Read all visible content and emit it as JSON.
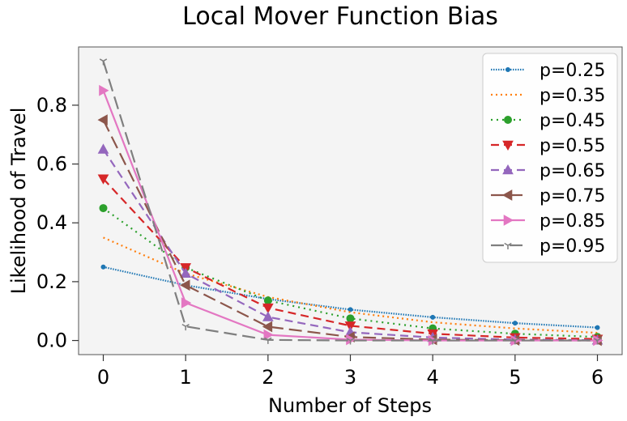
{
  "chart_data": {
    "type": "line",
    "title": "Local Mover Function Bias",
    "xlabel": "Number of Steps",
    "ylabel": "Likelihood of Travel",
    "x": [
      0,
      1,
      2,
      3,
      4,
      5,
      6
    ],
    "xlim": [
      -0.3,
      6.3
    ],
    "ylim": [
      -0.048,
      0.998
    ],
    "xticks": [
      "0",
      "1",
      "2",
      "3",
      "4",
      "5",
      "6"
    ],
    "yticks": [
      "0.0",
      "0.2",
      "0.4",
      "0.6",
      "0.8"
    ],
    "grid": false,
    "legend_position": "upper-right",
    "background": "#f4f4f4",
    "series": [
      {
        "name": "p=0.25",
        "color": "#1f77b4",
        "dash": "dotted-fine",
        "marker": "point",
        "values": [
          0.25,
          0.188,
          0.141,
          0.105,
          0.079,
          0.059,
          0.044
        ]
      },
      {
        "name": "p=0.35",
        "color": "#ff7f0e",
        "dash": "dotted",
        "marker": "none",
        "values": [
          0.35,
          0.228,
          0.148,
          0.096,
          0.062,
          0.041,
          0.026
        ]
      },
      {
        "name": "p=0.45",
        "color": "#2ca02c",
        "dash": "dash-dot",
        "marker": "circle",
        "values": [
          0.45,
          0.248,
          0.136,
          0.075,
          0.041,
          0.023,
          0.012
        ]
      },
      {
        "name": "p=0.55",
        "color": "#d62728",
        "dash": "dashed",
        "marker": "triangle-down",
        "values": [
          0.55,
          0.248,
          0.111,
          0.05,
          0.023,
          0.01,
          0.005
        ]
      },
      {
        "name": "p=0.65",
        "color": "#9467bd",
        "dash": "dashed",
        "marker": "triangle-up",
        "values": [
          0.65,
          0.228,
          0.08,
          0.028,
          0.01,
          0.003,
          0.001
        ]
      },
      {
        "name": "p=0.75",
        "color": "#8c564b",
        "dash": "long-dash",
        "marker": "triangle-left",
        "values": [
          0.75,
          0.188,
          0.047,
          0.012,
          0.003,
          0.001,
          0.0
        ]
      },
      {
        "name": "p=0.85",
        "color": "#e377c2",
        "dash": "solid",
        "marker": "triangle-right",
        "values": [
          0.85,
          0.128,
          0.019,
          0.003,
          0.0,
          0.0,
          0.0
        ]
      },
      {
        "name": "p=0.95",
        "color": "#7f7f7f",
        "dash": "long-dash",
        "marker": "tri",
        "values": [
          0.95,
          0.048,
          0.002,
          0.0,
          0.0,
          0.0,
          0.0
        ]
      }
    ]
  }
}
